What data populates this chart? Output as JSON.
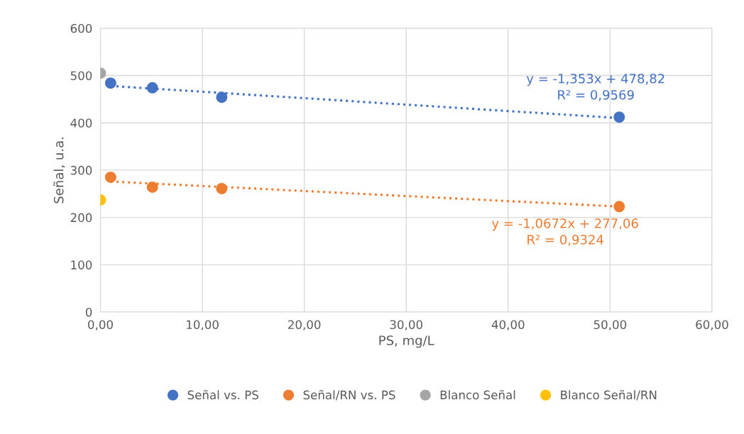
{
  "chart_data": {
    "type": "scatter",
    "xlabel": "PS, mg/L",
    "ylabel": "Señal, u.a.",
    "xlim": [
      0,
      60
    ],
    "xticks": [
      {
        "value": 0,
        "label": "0,00"
      },
      {
        "value": 10,
        "label": "10,00"
      },
      {
        "value": 20,
        "label": "20,00"
      },
      {
        "value": 30,
        "label": "30,00"
      },
      {
        "value": 40,
        "label": "40,00"
      },
      {
        "value": 50,
        "label": "50,00"
      },
      {
        "value": 60,
        "label": "60,00"
      }
    ],
    "ylim": [
      0,
      600
    ],
    "yticks": [
      0,
      100,
      200,
      300,
      400,
      500,
      600
    ],
    "grid": true,
    "legend": "bottom",
    "marker": "circle",
    "series": [
      {
        "name": "Señal vs. PS",
        "color": "#4472c4",
        "x": [
          1,
          5.1,
          11.9,
          50.9
        ],
        "values": [
          484,
          474,
          454,
          412
        ]
      },
      {
        "name": "Señal/RN vs. PS",
        "color": "#ed7d31",
        "x": [
          1,
          5.1,
          11.9,
          50.9
        ],
        "values": [
          285,
          264,
          261,
          223
        ]
      },
      {
        "name": "Blanco Señal",
        "color": "#a5a5a5",
        "x": [
          0
        ],
        "values": [
          505
        ]
      },
      {
        "name": "Blanco Señal/RN",
        "color": "#ffc000",
        "x": [
          0
        ],
        "values": [
          237
        ]
      },
      {
        "type": "line",
        "color": "#4472c4",
        "line_style": "dotted",
        "marker": "none",
        "x": [
          1,
          50.9
        ],
        "values": [
          478,
          410
        ]
      },
      {
        "type": "line",
        "color": "#ed7d31",
        "line_style": "dotted",
        "marker": "none",
        "x": [
          1,
          50.9
        ],
        "values": [
          276,
          223
        ]
      }
    ],
    "annotations": [
      "y = -1,353x + 478,82\nR² = 0,9569",
      "y = -1,0672x + 277,06\nR² = 0,9324"
    ]
  }
}
